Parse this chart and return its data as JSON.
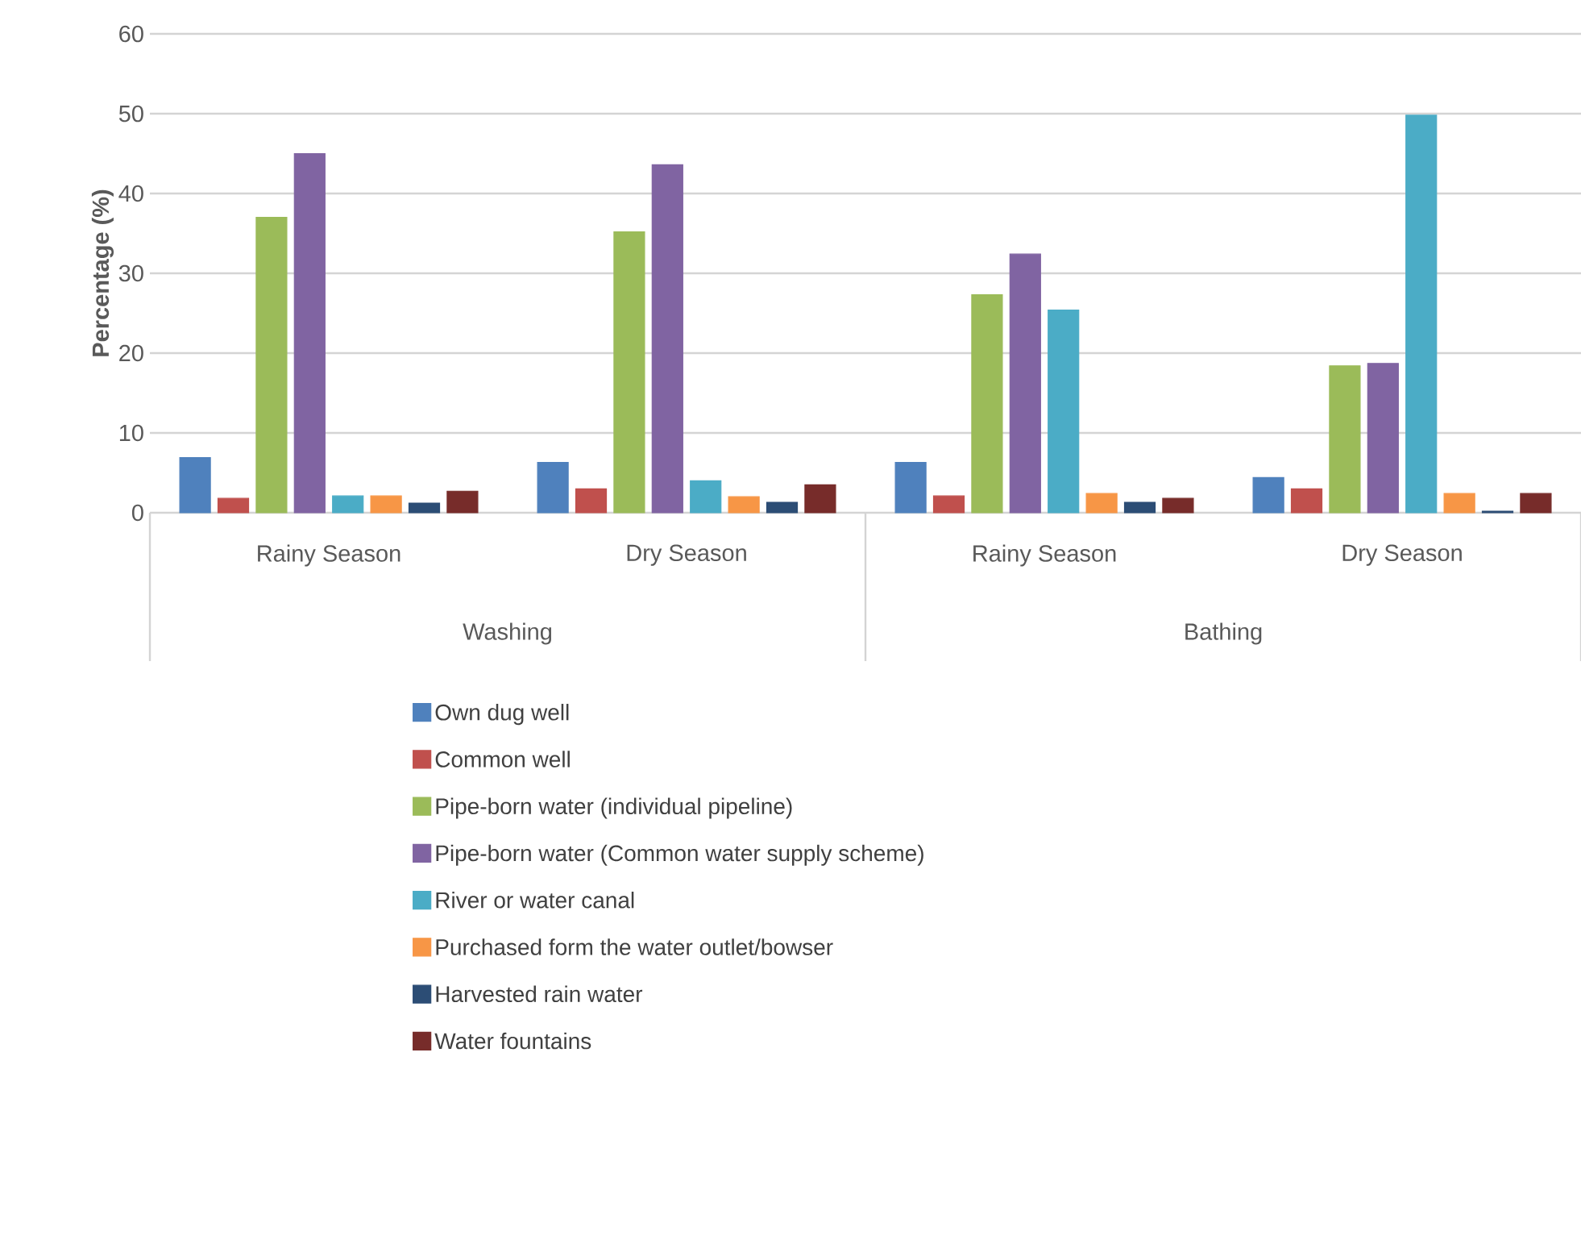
{
  "chart_data": {
    "type": "bar",
    "ylabel": "Percentage (%)",
    "categories": [
      "Rainy Season",
      "Dry Season",
      "Rainy Season",
      "Dry Season"
    ],
    "annotations": [
      "Washing",
      "Bathing"
    ],
    "series": [
      {
        "name": "Own dug well",
        "color": "#4f81bd",
        "values": [
          6.9,
          6.3,
          6.3,
          4.4
        ]
      },
      {
        "name": "Common well",
        "color": "#c0504d",
        "values": [
          1.8,
          3.0,
          2.1,
          3.0
        ]
      },
      {
        "name": "Pipe-born water (individual pipeline)",
        "color": "#9bbb59",
        "values": [
          37.0,
          35.2,
          27.3,
          18.4
        ]
      },
      {
        "name": "Pipe-born water (Common water supply scheme)",
        "color": "#8064a2",
        "values": [
          45.0,
          43.6,
          32.4,
          18.7
        ]
      },
      {
        "name": "River or water canal",
        "color": "#4bacc6",
        "values": [
          2.1,
          4.0,
          25.4,
          49.8
        ]
      },
      {
        "name": "Purchased form the water outlet/bowser",
        "color": "#f79646",
        "values": [
          2.1,
          2.0,
          2.4,
          2.4
        ]
      },
      {
        "name": "Harvested rain water",
        "color": "#2c4d75",
        "values": [
          1.2,
          1.3,
          1.3,
          0.2
        ]
      },
      {
        "name": "Water fountains",
        "color": "#772c2a",
        "values": [
          2.7,
          3.5,
          1.8,
          2.4
        ]
      }
    ],
    "ylim": [
      0,
      60
    ],
    "yticks": [
      0,
      10,
      20,
      30,
      40,
      50,
      60
    ],
    "grid": "y",
    "legend": "bottom"
  }
}
